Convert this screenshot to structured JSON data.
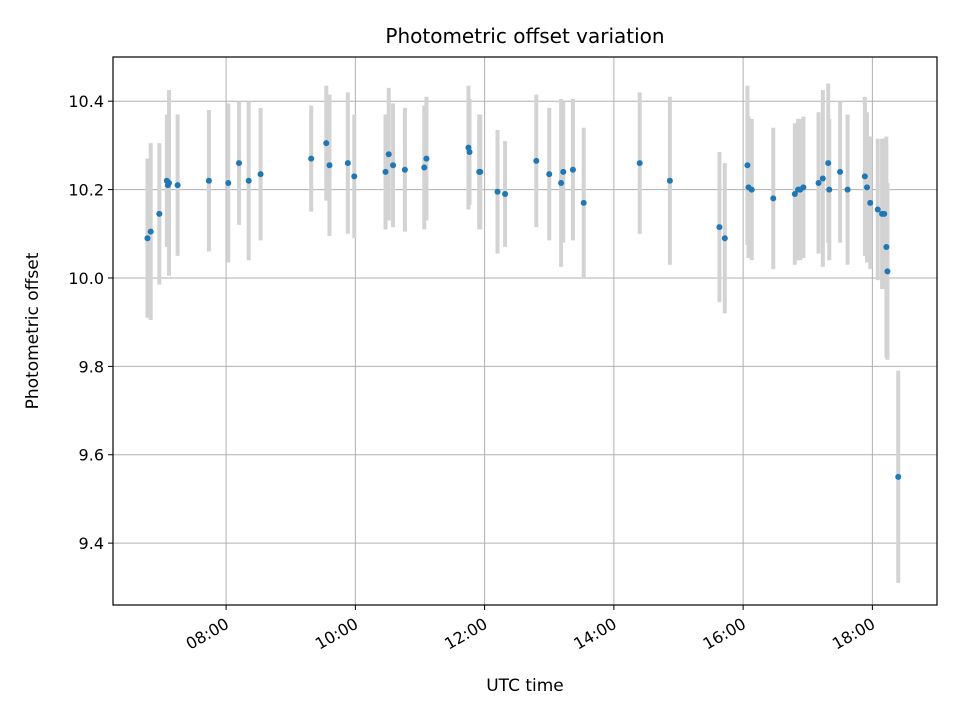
{
  "chart_data": {
    "type": "scatter",
    "title": "Photometric offset variation",
    "xlabel": "UTC time",
    "ylabel": "Photometric offset",
    "xlim": [
      "06:15",
      "19:00"
    ],
    "ylim": [
      9.26,
      10.5
    ],
    "x_ticks": [
      "08:00",
      "10:00",
      "12:00",
      "14:00",
      "16:00",
      "18:00"
    ],
    "y_ticks": [
      9.4,
      9.6,
      9.8,
      10.0,
      10.2,
      10.4
    ],
    "y_tick_labels": [
      "9.4",
      "9.6",
      "9.8",
      "10.0",
      "10.2",
      "10.4"
    ],
    "grid": true,
    "colors": {
      "points": "#1f77b4",
      "errorbars": "#d3d3d3",
      "grid": "#b0b0b0"
    },
    "series": [
      {
        "x": [
          "06:47",
          "06:50",
          "06:58",
          "07:05",
          "07:06",
          "07:07",
          "07:15",
          "07:44",
          "08:02",
          "08:12",
          "08:21",
          "08:32",
          "09:19",
          "09:33",
          "09:36",
          "09:53",
          "09:59",
          "10:28",
          "10:31",
          "10:35",
          "10:46",
          "11:04",
          "11:06",
          "11:45",
          "11:46",
          "11:55",
          "11:56",
          "12:12",
          "12:19",
          "12:48",
          "13:00",
          "13:11",
          "13:13",
          "13:22",
          "13:32",
          "14:24",
          "14:52",
          "15:38",
          "15:43",
          "16:04",
          "16:05",
          "16:08",
          "16:28",
          "16:48",
          "16:51",
          "16:53",
          "16:56",
          "17:10",
          "17:14",
          "17:19",
          "17:20",
          "17:30",
          "17:37",
          "17:53",
          "17:55",
          "17:58",
          "18:05",
          "18:09",
          "18:11",
          "18:13",
          "18:14",
          "18:24"
        ],
        "y": [
          10.09,
          10.105,
          10.145,
          10.22,
          10.21,
          10.215,
          10.21,
          10.22,
          10.215,
          10.26,
          10.22,
          10.235,
          10.27,
          10.305,
          10.255,
          10.26,
          10.23,
          10.24,
          10.28,
          10.255,
          10.245,
          10.25,
          10.27,
          10.295,
          10.285,
          10.24,
          10.24,
          10.195,
          10.19,
          10.265,
          10.235,
          10.215,
          10.24,
          10.245,
          10.17,
          10.26,
          10.22,
          10.115,
          10.09,
          10.255,
          10.205,
          10.2,
          10.18,
          10.19,
          10.2,
          10.2,
          10.205,
          10.215,
          10.225,
          10.26,
          10.2,
          10.24,
          10.2,
          10.23,
          10.205,
          10.17,
          10.155,
          10.145,
          10.145,
          10.07,
          10.015,
          9.55
        ],
        "err": [
          0.18,
          0.2,
          0.16,
          0.15,
          0.14,
          0.21,
          0.16,
          0.16,
          0.18,
          0.14,
          0.18,
          0.15,
          0.12,
          0.13,
          0.16,
          0.16,
          0.14,
          0.13,
          0.15,
          0.14,
          0.14,
          0.14,
          0.14,
          0.14,
          0.12,
          0.13,
          0.13,
          0.14,
          0.12,
          0.15,
          0.15,
          0.19,
          0.16,
          0.16,
          0.17,
          0.16,
          0.19,
          0.17,
          0.17,
          0.18,
          0.16,
          0.16,
          0.16,
          0.16,
          0.16,
          0.16,
          0.16,
          0.16,
          0.2,
          0.18,
          0.16,
          0.16,
          0.17,
          0.18,
          0.17,
          0.15,
          0.16,
          0.17,
          0.17,
          0.25,
          0.2,
          0.24
        ]
      }
    ]
  }
}
